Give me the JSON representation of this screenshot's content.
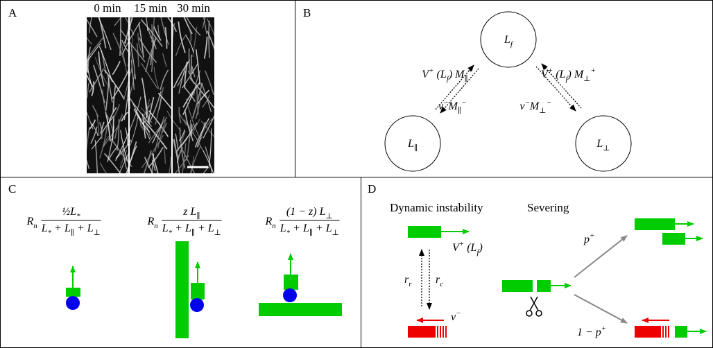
{
  "panel_a": {
    "label": "A",
    "times": [
      "0 min",
      "15 min",
      "30 min"
    ]
  },
  "panel_b": {
    "label": "B",
    "nodes": [
      [
        {
          "t": "L"
        },
        {
          "sub": "f"
        }
      ],
      [
        {
          "t": "L"
        },
        {
          "sub": "∥"
        }
      ],
      [
        {
          "t": "L"
        },
        {
          "sub": "⊥"
        }
      ]
    ],
    "edges": [
      [
        {
          "t": "V"
        },
        {
          "sup": "+"
        },
        {
          "t": " (L"
        },
        {
          "sub": "f"
        },
        {
          "t": ") M"
        },
        {
          "sub": "∥"
        },
        {
          "sup": "+"
        }
      ],
      [
        {
          "t": "v"
        },
        {
          "sup": "−"
        },
        {
          "t": "M"
        },
        {
          "sub": "∥"
        },
        {
          "sup": "−"
        }
      ],
      [
        {
          "t": "V"
        },
        {
          "sup": "+"
        },
        {
          "t": " (L"
        },
        {
          "sub": "f"
        },
        {
          "t": ") M"
        },
        {
          "sub": "⊥"
        },
        {
          "sup": "+"
        }
      ],
      [
        {
          "t": "v"
        },
        {
          "sup": "−"
        },
        {
          "t": "M"
        },
        {
          "sub": "⊥"
        },
        {
          "sup": "−"
        }
      ]
    ]
  },
  "panel_c": {
    "label": "C",
    "rates": [
      {
        "prefix": [
          {
            "t": "R"
          },
          {
            "sub": "n"
          }
        ],
        "num": [
          {
            "t": "½L"
          },
          {
            "sub": "*"
          }
        ],
        "den": [
          {
            "t": "L"
          },
          {
            "sub": "*"
          },
          {
            "t": " + L"
          },
          {
            "sub": "∥"
          },
          {
            "t": " + L"
          },
          {
            "sub": "⊥"
          }
        ]
      },
      {
        "prefix": [
          {
            "t": "R"
          },
          {
            "sub": "n"
          }
        ],
        "num": [
          {
            "t": "z L"
          },
          {
            "sub": "∥"
          }
        ],
        "den": [
          {
            "t": "L"
          },
          {
            "sub": "*"
          },
          {
            "t": " + L"
          },
          {
            "sub": "∥"
          },
          {
            "t": " + L"
          },
          {
            "sub": "⊥"
          }
        ]
      },
      {
        "prefix": [
          {
            "t": "R"
          },
          {
            "sub": "n"
          }
        ],
        "num": [
          {
            "t": "(1 − z) L"
          },
          {
            "sub": "⊥"
          }
        ],
        "den": [
          {
            "t": "L"
          },
          {
            "sub": "*"
          },
          {
            "t": " + L"
          },
          {
            "sub": "∥"
          },
          {
            "t": " + L"
          },
          {
            "sub": "⊥"
          }
        ]
      }
    ]
  },
  "panel_d": {
    "label": "D",
    "titles": [
      "Dynamic instability",
      "Severing"
    ],
    "growth": [
      {
        "t": "V"
      },
      {
        "sup": "+"
      },
      {
        "t": " (L"
      },
      {
        "sub": "f"
      },
      {
        "t": ")"
      }
    ],
    "rescue": [
      {
        "t": "r"
      },
      {
        "sub": "r"
      }
    ],
    "catastrophe": [
      {
        "t": "r"
      },
      {
        "sub": "c"
      }
    ],
    "shrink": [
      {
        "t": "v"
      },
      {
        "sup": "−"
      }
    ],
    "p_plus": [
      {
        "t": "p"
      },
      {
        "sup": "+"
      }
    ],
    "p_minus": [
      {
        "t": "1 − p"
      },
      {
        "sup": "+"
      }
    ]
  }
}
